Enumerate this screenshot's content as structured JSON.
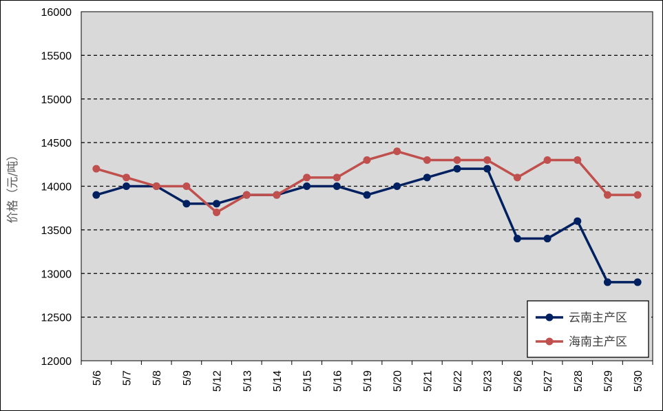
{
  "chart_data": {
    "type": "line",
    "title": "",
    "xlabel": "",
    "ylabel": "价格（元/吨）",
    "categories": [
      "5/6",
      "5/7",
      "5/8",
      "5/9",
      "5/12",
      "5/13",
      "5/14",
      "5/15",
      "5/16",
      "5/19",
      "5/20",
      "5/21",
      "5/22",
      "5/23",
      "5/26",
      "5/27",
      "5/28",
      "5/29",
      "5/30"
    ],
    "ylim": [
      12000,
      16000
    ],
    "yticks": [
      12000,
      12500,
      13000,
      13500,
      14000,
      14500,
      15000,
      15500,
      16000
    ],
    "grid": "horizontal-dashed",
    "plot_background": "#d9d9d9",
    "legend_position": "bottom-right",
    "series": [
      {
        "name": "云南主产区",
        "color": "#002060",
        "values": [
          13900,
          14000,
          14000,
          13800,
          13800,
          13900,
          13900,
          14000,
          14000,
          13900,
          14000,
          14100,
          14200,
          14200,
          13400,
          13400,
          13600,
          12900,
          12900
        ]
      },
      {
        "name": "海南主产区",
        "color": "#c0504d",
        "values": [
          14200,
          14100,
          14000,
          14000,
          13700,
          13900,
          13900,
          14100,
          14100,
          14300,
          14400,
          14300,
          14300,
          14300,
          14100,
          14300,
          14300,
          13900,
          13900
        ]
      }
    ]
  }
}
